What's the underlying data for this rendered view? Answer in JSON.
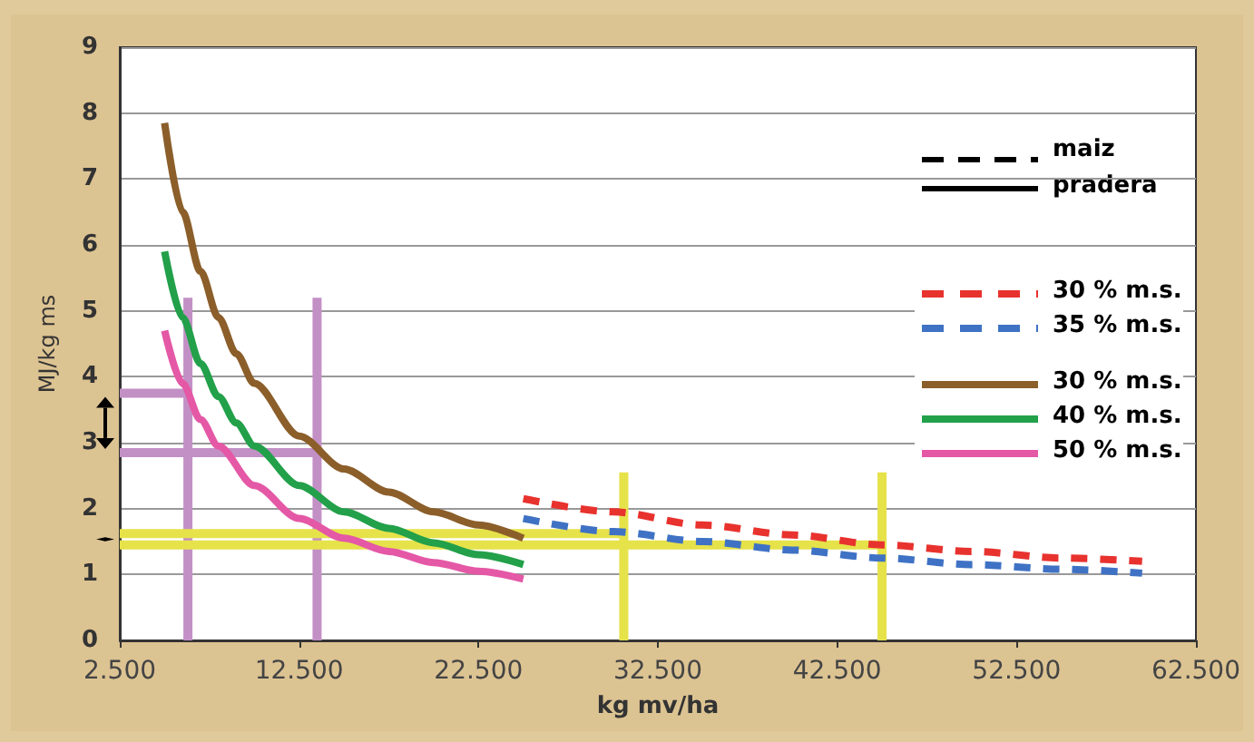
{
  "chart_data": {
    "type": "line",
    "xlabel": "kg mv/ha",
    "ylabel": "MJ/kg ms",
    "xlim": [
      2500,
      62500
    ],
    "xticks": [
      {
        "value": 2500,
        "label": "2.500"
      },
      {
        "value": 12500,
        "label": "12.500"
      },
      {
        "value": 22500,
        "label": "22.500"
      },
      {
        "value": 32500,
        "label": "32.500"
      },
      {
        "value": 42500,
        "label": "42.500"
      },
      {
        "value": 52500,
        "label": "52.500"
      },
      {
        "value": 62500,
        "label": "62.500"
      }
    ],
    "ylim": [
      0,
      9
    ],
    "yticks": [
      0,
      1,
      2,
      3,
      4,
      5,
      6,
      7,
      8,
      9
    ],
    "grid": "y",
    "legend": "right",
    "marker": "none",
    "annotations": [
      "maiz",
      "pradera"
    ],
    "series": [
      {
        "name": "30 % m.s.",
        "color": "#e8322e",
        "line_style": "dashed",
        "x": [
          25000,
          30000,
          35000,
          40000,
          45000,
          50000,
          55000,
          59500
        ],
        "values": [
          2.15,
          1.95,
          1.75,
          1.6,
          1.45,
          1.35,
          1.25,
          1.2
        ]
      },
      {
        "name": "35 % m.s.",
        "color": "#3f72c4",
        "line_style": "dashed",
        "x": [
          25000,
          30000,
          35000,
          40000,
          45000,
          50000,
          55000,
          59500
        ],
        "values": [
          1.85,
          1.65,
          1.5,
          1.37,
          1.25,
          1.15,
          1.08,
          1.02
        ]
      },
      {
        "name": "30 % m.s.",
        "color": "#8b5e2a",
        "line_style": "solid",
        "x": [
          5000,
          6000,
          7000,
          8000,
          9000,
          10000,
          12500,
          15000,
          17500,
          20000,
          22500,
          25000
        ],
        "values": [
          7.85,
          6.5,
          5.6,
          4.9,
          4.35,
          3.9,
          3.1,
          2.6,
          2.25,
          1.95,
          1.75,
          1.55
        ]
      },
      {
        "name": "40 % m.s.",
        "color": "#22a04a",
        "line_style": "solid",
        "x": [
          5000,
          6000,
          7000,
          8000,
          9000,
          10000,
          12500,
          15000,
          17500,
          20000,
          22500,
          25000
        ],
        "values": [
          5.9,
          4.9,
          4.2,
          3.7,
          3.3,
          2.95,
          2.35,
          1.95,
          1.7,
          1.48,
          1.3,
          1.15
        ]
      },
      {
        "name": "50 % m.s.",
        "color": "#e458a6",
        "line_style": "solid",
        "x": [
          5000,
          6000,
          7000,
          8000,
          10000,
          12500,
          15000,
          17500,
          20000,
          22500,
          25000
        ],
        "values": [
          4.7,
          3.9,
          3.35,
          2.95,
          2.35,
          1.85,
          1.55,
          1.35,
          1.18,
          1.05,
          0.93
        ]
      },
      {
        "color": "#c390c6",
        "line_style": "solid",
        "x": [
          6300,
          6300
        ],
        "values": [
          0,
          5.2
        ]
      },
      {
        "color": "#c390c6",
        "line_style": "solid",
        "x": [
          13500,
          13500
        ],
        "values": [
          0,
          5.2
        ]
      },
      {
        "color": "#c390c6",
        "line_style": "solid",
        "x": [
          2500,
          6300
        ],
        "values": [
          3.75,
          3.75
        ]
      },
      {
        "color": "#c390c6",
        "line_style": "solid",
        "x": [
          2500,
          13500
        ],
        "values": [
          2.85,
          2.85
        ]
      },
      {
        "color": "#e6e24a",
        "line_style": "solid",
        "x": [
          30600,
          30600
        ],
        "values": [
          0,
          2.55
        ]
      },
      {
        "color": "#e6e24a",
        "line_style": "solid",
        "x": [
          45000,
          45000
        ],
        "values": [
          0,
          2.55
        ]
      },
      {
        "color": "#e6e24a",
        "line_style": "solid",
        "x": [
          2500,
          30600
        ],
        "values": [
          1.62,
          1.62
        ]
      },
      {
        "color": "#e6e24a",
        "line_style": "solid",
        "x": [
          2500,
          45000
        ],
        "values": [
          1.45,
          1.45
        ]
      }
    ]
  }
}
